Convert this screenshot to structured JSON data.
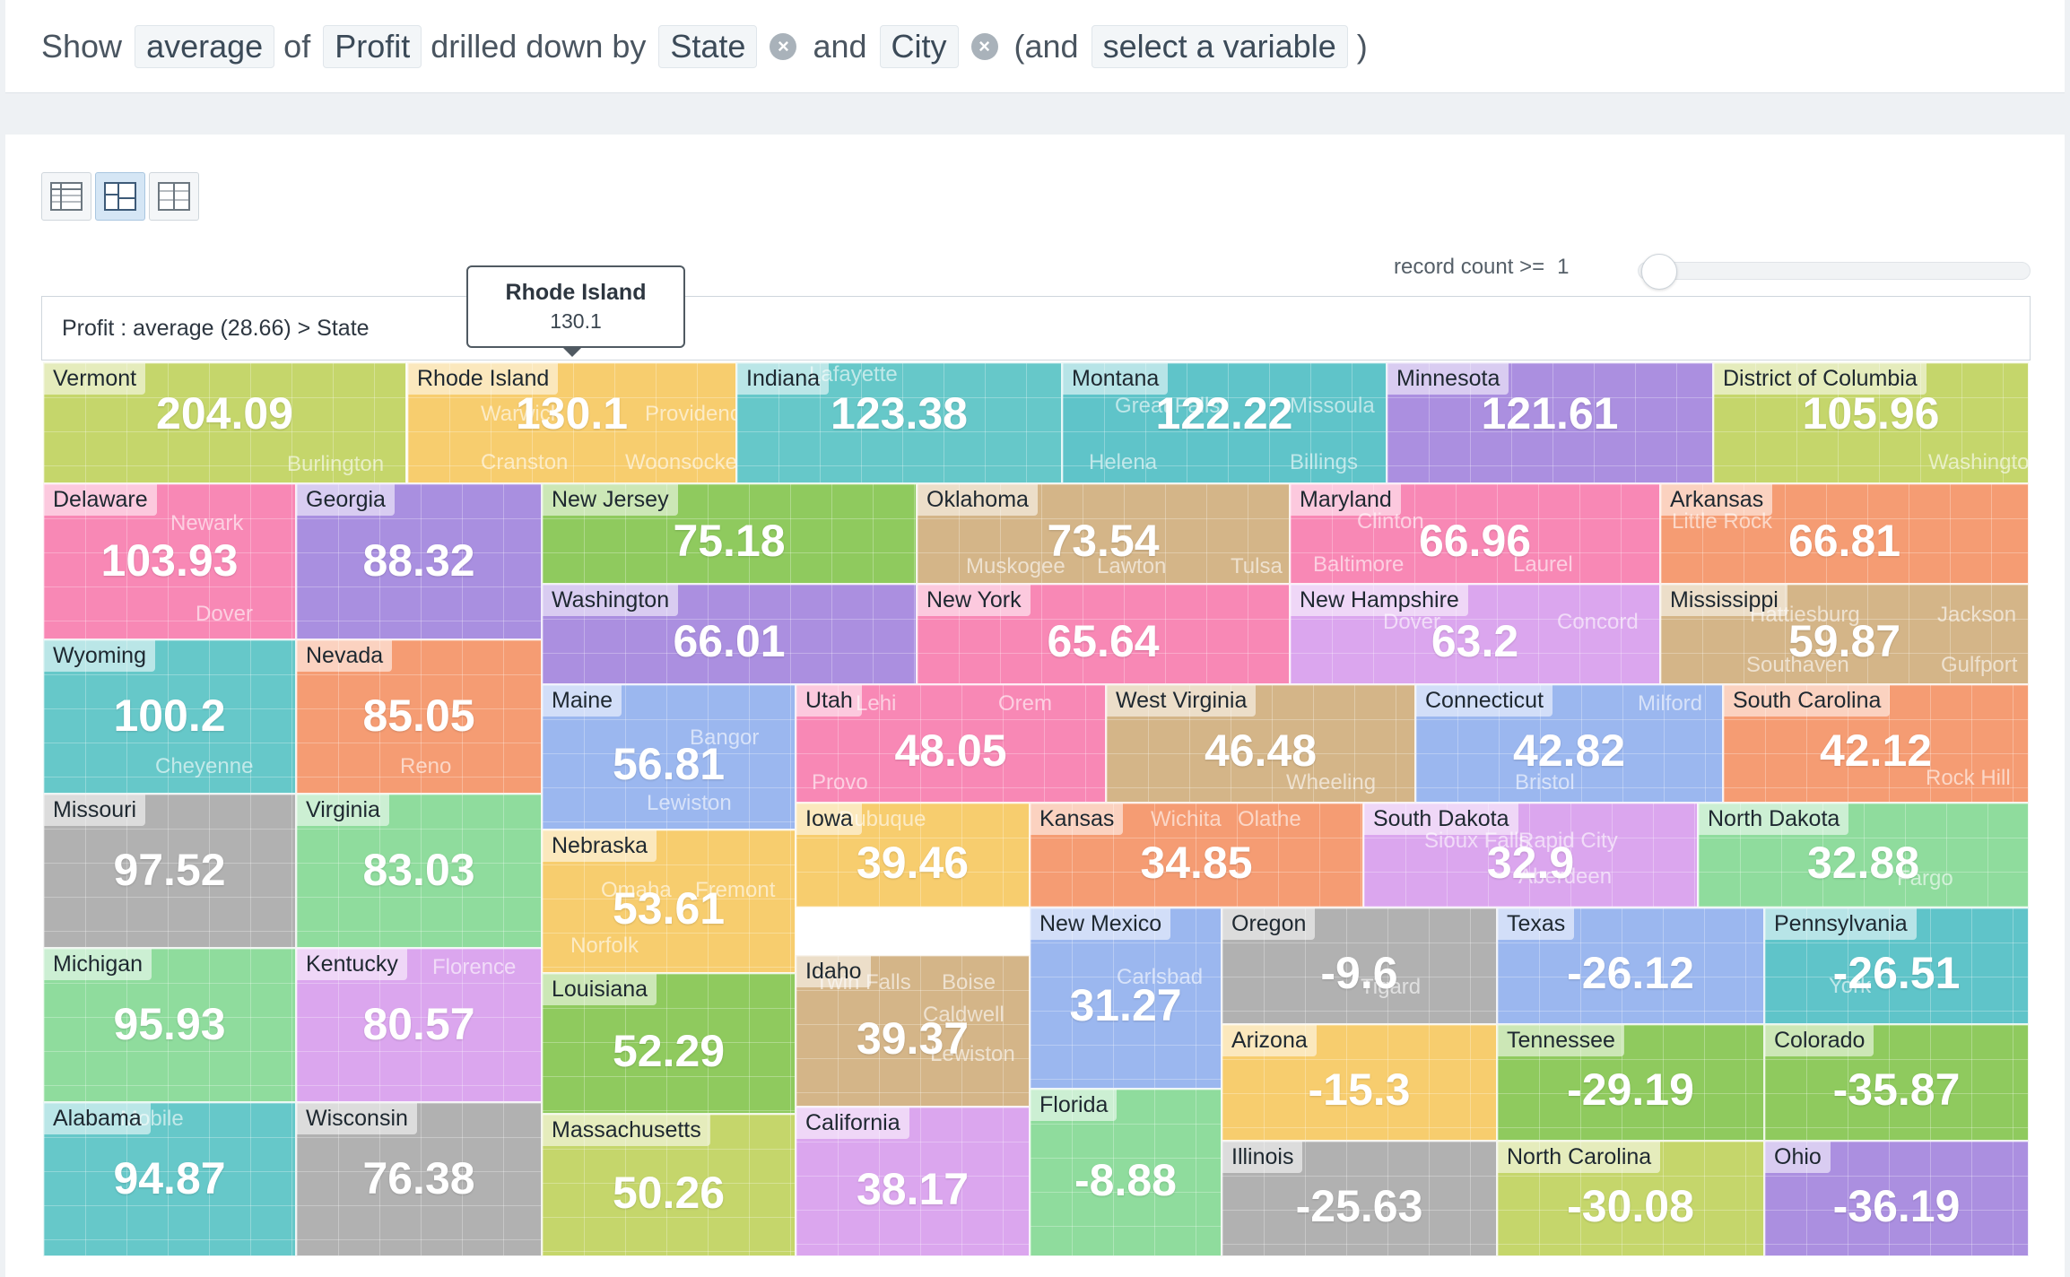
{
  "query": {
    "show": "Show",
    "agg": "average",
    "of": "of",
    "measure": "Profit",
    "drilled": "drilled down by",
    "dim1": "State",
    "and": "and",
    "dim2": "City",
    "paren_open": "(and",
    "select_var": "select a variable",
    "paren_close": ")",
    "clear_icon": "×"
  },
  "controls": {
    "record_count_label": "record count >=",
    "record_count_value": "1",
    "record_count_fraction": 0
  },
  "breadcrumb": "Profit : average (28.66) > State",
  "tooltip": {
    "title": "Rhode Island",
    "value": "130.1"
  },
  "view_icons": [
    "table-view-icon",
    "treemap-view-icon",
    "split-view-icon"
  ],
  "chart_data": {
    "type": "treemap",
    "measure": "Profit",
    "aggregation": "average",
    "overall_average": 28.66,
    "tiles": [
      {
        "state": "Vermont",
        "value": "204.09",
        "color": "#c5d66b",
        "cities": [
          "Burlington"
        ]
      },
      {
        "state": "Rhode Island",
        "value": "130.1",
        "color": "#f7cd6e",
        "cities": [
          "Warwick",
          "Providence",
          "Cranston",
          "Woonsocket"
        ]
      },
      {
        "state": "Indiana",
        "value": "123.38",
        "color": "#66c8c9",
        "cities": [
          "Lafayette"
        ]
      },
      {
        "state": "Montana",
        "value": "122.22",
        "color": "#5fc4c9",
        "cities": [
          "Great Falls",
          "Missoula",
          "Helena",
          "Billings"
        ]
      },
      {
        "state": "Minnesota",
        "value": "121.61",
        "color": "#ab8fe0",
        "cities": []
      },
      {
        "state": "District of Columbia",
        "value": "105.96",
        "color": "#c5d66b",
        "cities": [
          "Washington"
        ]
      },
      {
        "state": "Delaware",
        "value": "103.93",
        "color": "#f888b5",
        "cities": [
          "Newark",
          "Dover"
        ]
      },
      {
        "state": "Georgia",
        "value": "88.32",
        "color": "#a98fe0",
        "cities": []
      },
      {
        "state": "New Jersey",
        "value": "75.18",
        "color": "#8fca5e",
        "cities": []
      },
      {
        "state": "Oklahoma",
        "value": "73.54",
        "color": "#d4b588",
        "cities": [
          "Muskogee",
          "Lawton",
          "Tulsa"
        ]
      },
      {
        "state": "Maryland",
        "value": "66.96",
        "color": "#f888b5",
        "cities": [
          "Clinton",
          "Baltimore",
          "Laurel"
        ]
      },
      {
        "state": "Arkansas",
        "value": "66.81",
        "color": "#f59c73",
        "cities": [
          "Little Rock"
        ]
      },
      {
        "state": "Washington",
        "value": "66.01",
        "color": "#ab8fe0",
        "cities": []
      },
      {
        "state": "New York",
        "value": "65.64",
        "color": "#f888b5",
        "cities": []
      },
      {
        "state": "New Hampshire",
        "value": "63.2",
        "color": "#dba6ee",
        "cities": [
          "Dover",
          "Concord"
        ]
      },
      {
        "state": "Mississippi",
        "value": "59.87",
        "color": "#d4b588",
        "cities": [
          "Hattiesburg",
          "Jackson",
          "Southaven",
          "Gulfport"
        ]
      },
      {
        "state": "Wyoming",
        "value": "100.2",
        "color": "#66c8c9",
        "cities": [
          "Cheyenne"
        ]
      },
      {
        "state": "Nevada",
        "value": "85.05",
        "color": "#f59c73",
        "cities": [
          "Reno"
        ]
      },
      {
        "state": "Maine",
        "value": "56.81",
        "color": "#9bb7ef",
        "cities": [
          "Bangor",
          "Lewiston"
        ]
      },
      {
        "state": "Utah",
        "value": "48.05",
        "color": "#f888b5",
        "cities": [
          "Lehi",
          "Orem",
          "Provo"
        ]
      },
      {
        "state": "West Virginia",
        "value": "46.48",
        "color": "#d4b588",
        "cities": [
          "Wheeling"
        ]
      },
      {
        "state": "Connecticut",
        "value": "42.82",
        "color": "#9bb7ef",
        "cities": [
          "Milford",
          "Bristol"
        ]
      },
      {
        "state": "South Carolina",
        "value": "42.12",
        "color": "#f59c73",
        "cities": [
          "Rock Hill"
        ]
      },
      {
        "state": "Missouri",
        "value": "97.52",
        "color": "#b1b1b1",
        "cities": []
      },
      {
        "state": "Virginia",
        "value": "83.03",
        "color": "#8fdc9d",
        "cities": []
      },
      {
        "state": "Nebraska",
        "value": "53.61",
        "color": "#f7cd6e",
        "cities": [
          "Omaha",
          "Fremont",
          "Norfolk"
        ]
      },
      {
        "state": "Iowa",
        "value": "39.46",
        "color": "#f7cd6e",
        "cities": [
          "Dubuque"
        ]
      },
      {
        "state": "Kansas",
        "value": "34.85",
        "color": "#f59c73",
        "cities": [
          "Wichita",
          "Olathe"
        ]
      },
      {
        "state": "South Dakota",
        "value": "32.9",
        "color": "#dba6ee",
        "cities": [
          "Sioux Falls",
          "Rapid City",
          "Aberdeen"
        ]
      },
      {
        "state": "North Dakota",
        "value": "32.88",
        "color": "#8fdc9d",
        "cities": [
          "Fargo"
        ]
      },
      {
        "state": "Michigan",
        "value": "95.93",
        "color": "#8fdc9d",
        "cities": []
      },
      {
        "state": "Kentucky",
        "value": "80.57",
        "color": "#dba6ee",
        "cities": [
          "Florence"
        ]
      },
      {
        "state": "Louisiana",
        "value": "52.29",
        "color": "#8fca5e",
        "cities": []
      },
      {
        "state": "Idaho",
        "value": "39.37",
        "color": "#d4b588",
        "cities": [
          "Twin Falls",
          "Boise",
          "Caldwell",
          "Lewiston"
        ]
      },
      {
        "state": "New Mexico",
        "value": "31.27",
        "color": "#9bb7ef",
        "cities": [
          "Carlsbad"
        ]
      },
      {
        "state": "Oregon",
        "value": "-9.6",
        "color": "#b1b1b1",
        "cities": [
          "Tigard"
        ]
      },
      {
        "state": "Texas",
        "value": "-26.12",
        "color": "#9bb7ef",
        "cities": []
      },
      {
        "state": "Pennsylvania",
        "value": "-26.51",
        "color": "#5fc4c9",
        "cities": [
          "York"
        ]
      },
      {
        "state": "Arizona",
        "value": "-15.3",
        "color": "#f7cd6e",
        "cities": []
      },
      {
        "state": "Tennessee",
        "value": "-29.19",
        "color": "#8fca5e",
        "cities": []
      },
      {
        "state": "Colorado",
        "value": "-35.87",
        "color": "#8fca5e",
        "cities": []
      },
      {
        "state": "Alabama",
        "value": "94.87",
        "color": "#66c8c9",
        "cities": [
          "Mobile"
        ]
      },
      {
        "state": "Wisconsin",
        "value": "76.38",
        "color": "#b1b1b1",
        "cities": []
      },
      {
        "state": "Massachusetts",
        "value": "50.26",
        "color": "#c5d66b",
        "cities": []
      },
      {
        "state": "California",
        "value": "38.17",
        "color": "#dba6ee",
        "cities": []
      },
      {
        "state": "Florida",
        "value": "-8.88",
        "color": "#8fdc9d",
        "cities": []
      },
      {
        "state": "Illinois",
        "value": "-25.63",
        "color": "#b1b1b1",
        "cities": []
      },
      {
        "state": "North Carolina",
        "value": "-30.08",
        "color": "#c5d66b",
        "cities": []
      },
      {
        "state": "Ohio",
        "value": "-36.19",
        "color": "#ab8fe0",
        "cities": []
      }
    ]
  }
}
